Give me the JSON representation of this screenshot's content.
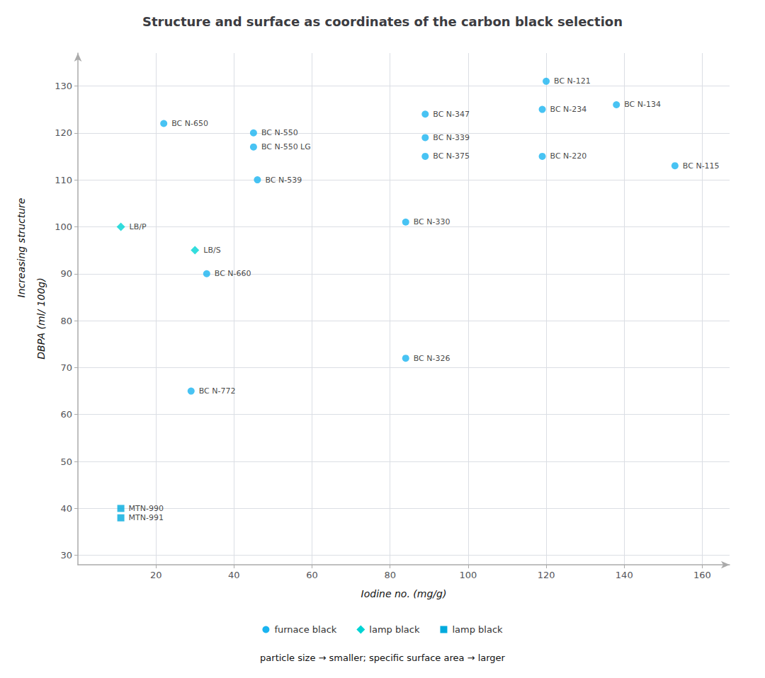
{
  "chart_data": {
    "type": "scatter",
    "title": "Structure and surface as coordinates of the carbon black selection",
    "subtitle": "particle size → smaller; specific surface area → larger",
    "xlabel": "Iodine no. (mg/g)",
    "ylabel": [
      "Increasing structure",
      "DBPA (ml/ 100g)"
    ],
    "xlim": [
      0,
      167
    ],
    "ylim": [
      28,
      137
    ],
    "xticks": [
      20,
      40,
      60,
      80,
      100,
      120,
      140,
      160
    ],
    "yticks": [
      30,
      40,
      50,
      60,
      70,
      80,
      90,
      100,
      110,
      120,
      130
    ],
    "grid": true,
    "legend": "bottom",
    "series": [
      {
        "name": "furnace black",
        "color": "#1ab4f0",
        "marker": "circle",
        "x": [
          22,
          45,
          45,
          46,
          33,
          29,
          84,
          84,
          89,
          89,
          89,
          120,
          119,
          119,
          138,
          153
        ],
        "y": [
          122,
          120,
          117,
          110,
          90,
          65,
          101,
          72,
          124,
          119,
          115,
          131,
          125,
          115,
          126,
          113
        ],
        "labels": [
          "BC N-650",
          "BC N-550",
          "BC N-550 LG",
          "BC N-539",
          "BC N-660",
          "BC N-772",
          "BC N-330",
          "BC N-326",
          "BC N-347",
          "BC N-339",
          "BC N-375",
          "BC N-121",
          "BC N-234",
          "BC N-220",
          "BC N-134",
          "BC N-115"
        ]
      },
      {
        "name": "lamp black",
        "color": "#00d4d4",
        "marker": "diamond",
        "x": [
          11,
          30
        ],
        "y": [
          100,
          95
        ],
        "labels": [
          "LB/P",
          "LB/S"
        ]
      },
      {
        "name": "lamp black",
        "color": "#00aadd",
        "marker": "square",
        "x": [
          11,
          11
        ],
        "y": [
          40,
          38
        ],
        "labels": [
          "MTN-990",
          "MTN-991"
        ]
      }
    ]
  }
}
